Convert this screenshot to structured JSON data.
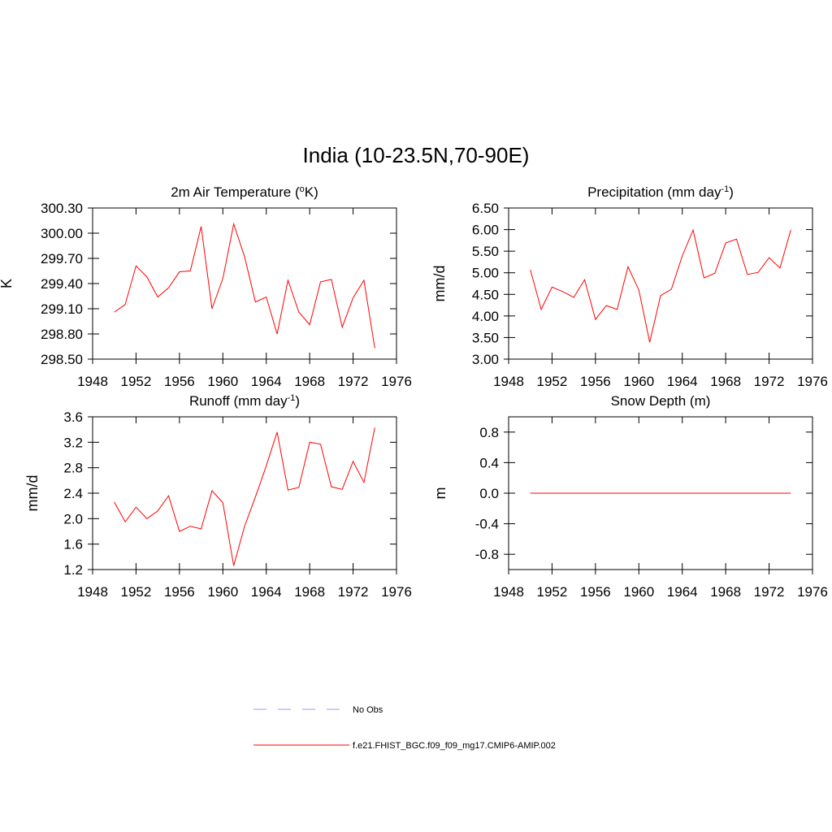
{
  "title": "India (10-23.5N,70-90E)",
  "chart_data": [
    {
      "type": "line",
      "title": [
        {
          "text": "2m Air Temperature ("
        },
        {
          "text": "o",
          "sup": true
        },
        {
          "text": "K)"
        }
      ],
      "ylabel": "K",
      "x": [
        1950,
        1951,
        1952,
        1953,
        1954,
        1955,
        1956,
        1957,
        1958,
        1959,
        1960,
        1961,
        1962,
        1963,
        1964,
        1965,
        1966,
        1967,
        1968,
        1969,
        1970,
        1971,
        1972,
        1973,
        1974
      ],
      "xlim": [
        1948,
        1976
      ],
      "xticks": [
        1948,
        1952,
        1956,
        1960,
        1964,
        1968,
        1972,
        1976
      ],
      "ylim": [
        298.5,
        300.3
      ],
      "yticks": [
        {
          "value": 298.5,
          "label": "298.50"
        },
        {
          "value": 298.8,
          "label": "298.80"
        },
        {
          "value": 299.1,
          "label": "299.10"
        },
        {
          "value": 299.4,
          "label": "299.40"
        },
        {
          "value": 299.7,
          "label": "299.70"
        },
        {
          "value": 300.0,
          "label": "300.00"
        },
        {
          "value": 300.3,
          "label": "300.30"
        }
      ],
      "series": [
        {
          "color": "#ff0000",
          "values": [
            299.06,
            299.15,
            299.61,
            299.48,
            299.24,
            299.35,
            299.54,
            299.55,
            300.08,
            299.1,
            299.46,
            300.11,
            299.72,
            299.18,
            299.24,
            298.8,
            299.44,
            299.06,
            298.91,
            299.42,
            299.45,
            298.88,
            299.23,
            299.44,
            298.63
          ]
        }
      ]
    },
    {
      "type": "line",
      "title": [
        {
          "text": "Precipitation (mm day"
        },
        {
          "text": "-1",
          "sup": true
        },
        {
          "text": ")"
        }
      ],
      "ylabel": "mm/d",
      "x": [
        1950,
        1951,
        1952,
        1953,
        1954,
        1955,
        1956,
        1957,
        1958,
        1959,
        1960,
        1961,
        1962,
        1963,
        1964,
        1965,
        1966,
        1967,
        1968,
        1969,
        1970,
        1971,
        1972,
        1973,
        1974
      ],
      "xlim": [
        1948,
        1976
      ],
      "xticks": [
        1948,
        1952,
        1956,
        1960,
        1964,
        1968,
        1972,
        1976
      ],
      "ylim": [
        3.0,
        6.5
      ],
      "yticks": [
        {
          "value": 3.0,
          "label": "3.00"
        },
        {
          "value": 3.5,
          "label": "3.50"
        },
        {
          "value": 4.0,
          "label": "4.00"
        },
        {
          "value": 4.5,
          "label": "4.50"
        },
        {
          "value": 5.0,
          "label": "5.00"
        },
        {
          "value": 5.5,
          "label": "5.50"
        },
        {
          "value": 6.0,
          "label": "6.00"
        },
        {
          "value": 6.5,
          "label": "6.50"
        }
      ],
      "series": [
        {
          "color": "#ff0000",
          "values": [
            5.07,
            4.15,
            4.67,
            4.56,
            4.43,
            4.84,
            3.92,
            4.24,
            4.15,
            5.14,
            4.6,
            3.39,
            4.47,
            4.62,
            5.39,
            5.99,
            4.88,
            4.99,
            5.69,
            5.78,
            4.96,
            5.01,
            5.35,
            5.11,
            5.99
          ]
        }
      ]
    },
    {
      "type": "line",
      "title": [
        {
          "text": "Runoff (mm day"
        },
        {
          "text": "-1",
          "sup": true
        },
        {
          "text": ")"
        }
      ],
      "ylabel": "mm/d",
      "x": [
        1950,
        1951,
        1952,
        1953,
        1954,
        1955,
        1956,
        1957,
        1958,
        1959,
        1960,
        1961,
        1962,
        1963,
        1964,
        1965,
        1966,
        1967,
        1968,
        1969,
        1970,
        1971,
        1972,
        1973,
        1974
      ],
      "xlim": [
        1948,
        1976
      ],
      "xticks": [
        1948,
        1952,
        1956,
        1960,
        1964,
        1968,
        1972,
        1976
      ],
      "ylim": [
        1.2,
        3.6
      ],
      "yticks": [
        1.2,
        1.6,
        {
          "value": 2.0,
          "label": "2.0"
        },
        2.4,
        2.8,
        3.2,
        3.6
      ],
      "series": [
        {
          "color": "#ff0000",
          "values": [
            2.26,
            1.95,
            2.18,
            2.0,
            2.12,
            2.36,
            1.8,
            1.88,
            1.84,
            2.44,
            2.25,
            1.26,
            1.88,
            2.34,
            2.83,
            3.36,
            2.45,
            2.49,
            3.2,
            3.17,
            2.5,
            2.46,
            2.9,
            2.57,
            3.43
          ]
        }
      ]
    },
    {
      "type": "line",
      "title": [
        {
          "text": "Snow Depth (m)"
        }
      ],
      "ylabel": "m",
      "x": [
        1950,
        1951,
        1952,
        1953,
        1954,
        1955,
        1956,
        1957,
        1958,
        1959,
        1960,
        1961,
        1962,
        1963,
        1964,
        1965,
        1966,
        1967,
        1968,
        1969,
        1970,
        1971,
        1972,
        1973,
        1974
      ],
      "xlim": [
        1948,
        1976
      ],
      "xticks": [
        1948,
        1952,
        1956,
        1960,
        1964,
        1968,
        1972,
        1976
      ],
      "ylim": [
        -1.0,
        1.0
      ],
      "yticks": [
        -0.8,
        -0.4,
        {
          "value": 0,
          "label": "0.0"
        },
        0.4,
        0.8
      ],
      "series": [
        {
          "color": "#ff0000",
          "values": [
            0,
            0,
            0,
            0,
            0,
            0,
            0,
            0,
            0,
            0,
            0,
            0,
            0,
            0,
            0,
            0,
            0,
            0,
            0,
            0,
            0,
            0,
            0,
            0,
            0
          ]
        }
      ]
    }
  ],
  "legend": [
    {
      "name": "No Obs",
      "color": "#9999ff",
      "dash": true
    },
    {
      "name": "f.e21.FHIST_BGC.f09_f09_mg17.CMIP6-AMIP.002",
      "color": "#ff0000",
      "dash": false
    }
  ]
}
